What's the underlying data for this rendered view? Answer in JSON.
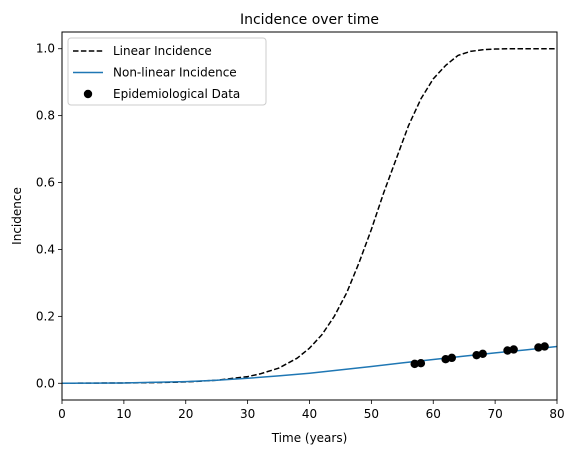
{
  "chart_data": {
    "type": "line",
    "title": "Incidence over time",
    "xlabel": "Time (years)",
    "ylabel": "Incidence",
    "xlim": [
      0,
      80
    ],
    "ylim": [
      -0.05,
      1.05
    ],
    "xticks": [
      "0",
      "10",
      "20",
      "30",
      "40",
      "50",
      "60",
      "70",
      "80"
    ],
    "yticks": [
      "0.0",
      "0.2",
      "0.4",
      "0.6",
      "0.8",
      "1.0"
    ],
    "grid": false,
    "legend": "top-left",
    "series": [
      {
        "name": "Linear Incidence",
        "type": "line",
        "style": "dashed",
        "color": "#000000",
        "x": [
          0,
          10,
          15,
          20,
          25,
          30,
          32,
          35,
          38,
          40,
          42,
          44,
          46,
          48,
          50,
          52,
          54,
          56,
          58,
          60,
          62,
          64,
          66,
          68,
          70,
          72,
          74,
          76,
          78,
          80
        ],
        "y": [
          0.0,
          0.001,
          0.002,
          0.004,
          0.009,
          0.02,
          0.028,
          0.045,
          0.075,
          0.105,
          0.145,
          0.2,
          0.27,
          0.36,
          0.46,
          0.57,
          0.67,
          0.77,
          0.85,
          0.91,
          0.95,
          0.98,
          0.992,
          0.997,
          0.999,
          1.0,
          1.0,
          1.0,
          1.0,
          1.0
        ]
      },
      {
        "name": "Non-linear Incidence",
        "type": "line",
        "style": "solid",
        "color": "#1f77b4",
        "x": [
          0,
          10,
          20,
          25,
          30,
          35,
          40,
          45,
          50,
          55,
          60,
          65,
          70,
          75,
          80
        ],
        "y": [
          0.0,
          0.001,
          0.005,
          0.009,
          0.015,
          0.022,
          0.03,
          0.04,
          0.05,
          0.061,
          0.071,
          0.081,
          0.091,
          0.1,
          0.11
        ]
      },
      {
        "name": "Epidemiological Data",
        "type": "scatter",
        "color": "#000000",
        "x": [
          57,
          58,
          62,
          63,
          67,
          68,
          72,
          73,
          77,
          78
        ],
        "y": [
          0.058,
          0.06,
          0.072,
          0.076,
          0.084,
          0.088,
          0.098,
          0.101,
          0.107,
          0.11
        ]
      }
    ]
  }
}
